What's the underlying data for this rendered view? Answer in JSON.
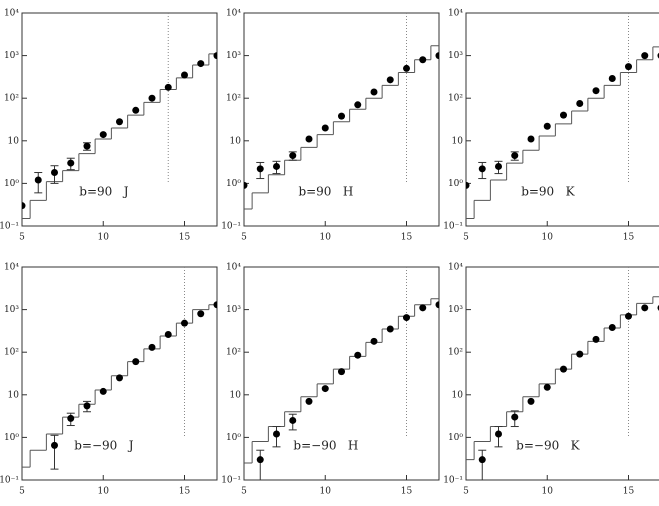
{
  "chart_data": [
    {
      "type": "scatter",
      "label": "b=90   J",
      "x": [
        5,
        6,
        7,
        8,
        9,
        10,
        11,
        12,
        13,
        14,
        15,
        16,
        17
      ],
      "values": [
        0.3,
        1.2,
        1.8,
        3,
        7.5,
        14,
        28,
        52,
        100,
        180,
        350,
        650,
        1000
      ],
      "errors": [
        null,
        0.6,
        0.8,
        0.9,
        1.5,
        null,
        null,
        null,
        null,
        null,
        null,
        null,
        null
      ],
      "bins": [
        4.5,
        5.5,
        6.5,
        7.5,
        8.5,
        9.5,
        10.5,
        11.5,
        12.5,
        13.5,
        14.5,
        15.5,
        16.5,
        17.5
      ],
      "counts": [
        0.15,
        0.4,
        1.1,
        2,
        5,
        11,
        20,
        40,
        80,
        160,
        300,
        600,
        1100
      ],
      "vline": 14,
      "log_y": true,
      "xlim": [
        5,
        17
      ],
      "ylim": [
        0.1,
        10000
      ],
      "xticks": [
        5,
        10,
        15
      ],
      "yticks": [
        {
          "value": 0.1,
          "label": "10⁻¹"
        },
        {
          "value": 1,
          "label": "10⁰"
        },
        10,
        {
          "value": 100,
          "label": "10²"
        },
        {
          "value": 1000,
          "label": "10³"
        },
        {
          "value": 10000,
          "label": "10⁴"
        }
      ]
    },
    {
      "type": "scatter",
      "label": "b=90   H",
      "x": [
        5,
        6,
        7,
        8,
        9,
        10,
        11,
        12,
        13,
        14,
        15,
        16,
        17
      ],
      "values": [
        0.9,
        2.2,
        2.5,
        4.5,
        11,
        20,
        38,
        70,
        140,
        270,
        500,
        800,
        1000
      ],
      "errors": [
        null,
        0.9,
        0.8,
        1,
        null,
        null,
        null,
        null,
        null,
        null,
        null,
        null,
        null
      ],
      "bins": [
        4.5,
        5.5,
        6.5,
        7.5,
        8.5,
        9.5,
        10.5,
        11.5,
        12.5,
        13.5,
        14.5,
        15.5,
        16.5,
        17.5
      ],
      "counts": [
        0.25,
        0.6,
        1.6,
        3.5,
        7,
        14,
        28,
        55,
        100,
        200,
        400,
        800,
        1700
      ],
      "vline": 15,
      "log_y": true,
      "xlim": [
        5,
        17
      ],
      "ylim": [
        0.1,
        10000
      ],
      "xticks": [
        5,
        10,
        15
      ],
      "yticks": [
        {
          "value": 0.1,
          "label": "10⁻¹"
        },
        {
          "value": 1,
          "label": "10⁰"
        },
        10,
        {
          "value": 100,
          "label": "10²"
        },
        {
          "value": 1000,
          "label": "10³"
        },
        {
          "value": 10000,
          "label": "10⁴"
        }
      ]
    },
    {
      "type": "scatter",
      "label": "b=90   K",
      "x": [
        5,
        6,
        7,
        8,
        9,
        10,
        11,
        12,
        13,
        14,
        15,
        16,
        17
      ],
      "values": [
        0.9,
        2.2,
        2.5,
        4.5,
        11,
        22,
        40,
        75,
        150,
        290,
        550,
        1000,
        1000
      ],
      "errors": [
        null,
        0.9,
        0.8,
        1,
        null,
        null,
        null,
        null,
        null,
        null,
        null,
        null,
        null
      ],
      "bins": [
        4.5,
        5.5,
        6.5,
        7.5,
        8.5,
        9.5,
        10.5,
        11.5,
        12.5,
        13.5,
        14.5,
        15.5,
        16.5,
        17.5
      ],
      "counts": [
        0.15,
        0.4,
        1.2,
        3,
        6,
        13,
        25,
        50,
        100,
        200,
        400,
        800,
        1600
      ],
      "vline": 15,
      "log_y": true,
      "xlim": [
        5,
        17
      ],
      "ylim": [
        0.1,
        10000
      ],
      "xticks": [
        5,
        10,
        15
      ],
      "yticks": [
        {
          "value": 0.1,
          "label": "10⁻¹"
        },
        {
          "value": 1,
          "label": "10⁰"
        },
        10,
        {
          "value": 100,
          "label": "10²"
        },
        {
          "value": 1000,
          "label": "10³"
        },
        {
          "value": 10000,
          "label": "10⁴"
        }
      ]
    },
    {
      "type": "scatter",
      "label": "b=−90   J",
      "x": [
        5,
        6,
        7,
        8,
        9,
        10,
        11,
        12,
        13,
        14,
        15,
        16,
        17
      ],
      "values": [
        null,
        null,
        0.65,
        2.8,
        5.5,
        12,
        25,
        60,
        130,
        260,
        480,
        800,
        1300
      ],
      "errors": [
        null,
        null,
        0.47,
        0.9,
        1.5,
        null,
        null,
        null,
        null,
        null,
        null,
        null,
        null
      ],
      "bins": [
        4.5,
        5.5,
        6.5,
        7.5,
        8.5,
        9.5,
        10.5,
        11.5,
        12.5,
        13.5,
        14.5,
        15.5,
        16.5,
        17.5
      ],
      "counts": [
        0.2,
        0.5,
        1.2,
        3,
        6,
        13,
        28,
        60,
        120,
        240,
        480,
        1000,
        1300
      ],
      "vline": 15,
      "log_y": true,
      "xlim": [
        5,
        17
      ],
      "ylim": [
        0.1,
        10000
      ],
      "xticks": [
        5,
        10,
        15
      ],
      "yticks": [
        {
          "value": 0.1,
          "label": "10⁻¹"
        },
        {
          "value": 1,
          "label": "10⁰"
        },
        10,
        {
          "value": 100,
          "label": "10²"
        },
        {
          "value": 1000,
          "label": "10³"
        },
        {
          "value": 10000,
          "label": "10⁴"
        }
      ]
    },
    {
      "type": "scatter",
      "label": "b=−90   H",
      "x": [
        5,
        6,
        7,
        8,
        9,
        10,
        11,
        12,
        13,
        14,
        15,
        16,
        17
      ],
      "values": [
        null,
        0.3,
        1.2,
        2.5,
        7,
        14,
        35,
        85,
        180,
        350,
        650,
        1100,
        1300
      ],
      "errors": [
        null,
        0.2,
        0.6,
        1,
        null,
        null,
        null,
        null,
        null,
        null,
        null,
        null,
        null
      ],
      "bins": [
        4.5,
        5.5,
        6.5,
        7.5,
        8.5,
        9.5,
        10.5,
        11.5,
        12.5,
        13.5,
        14.5,
        15.5,
        16.5,
        17.5
      ],
      "counts": [
        0.25,
        0.8,
        1.8,
        4,
        9,
        18,
        40,
        80,
        170,
        350,
        700,
        1300,
        1800
      ],
      "vline": 15,
      "log_y": true,
      "xlim": [
        5,
        17
      ],
      "ylim": [
        0.1,
        10000
      ],
      "xticks": [
        5,
        10,
        15
      ],
      "yticks": [
        {
          "value": 0.1,
          "label": "10⁻¹"
        },
        {
          "value": 1,
          "label": "10⁰"
        },
        10,
        {
          "value": 100,
          "label": "10²"
        },
        {
          "value": 1000,
          "label": "10³"
        },
        {
          "value": 10000,
          "label": "10⁴"
        }
      ]
    },
    {
      "type": "scatter",
      "label": "b=−90   K",
      "x": [
        5,
        6,
        7,
        8,
        9,
        10,
        11,
        12,
        13,
        14,
        15,
        16,
        17
      ],
      "values": [
        null,
        0.3,
        1.2,
        3,
        7,
        15,
        40,
        90,
        200,
        380,
        700,
        1100,
        1100
      ],
      "errors": [
        null,
        0.2,
        0.6,
        1.2,
        null,
        null,
        null,
        null,
        null,
        null,
        null,
        null,
        null
      ],
      "bins": [
        4.5,
        5.5,
        6.5,
        7.5,
        8.5,
        9.5,
        10.5,
        11.5,
        12.5,
        13.5,
        14.5,
        15.5,
        16.5,
        17.5
      ],
      "counts": [
        0.3,
        0.8,
        1.8,
        4,
        9,
        18,
        40,
        90,
        180,
        370,
        750,
        1400,
        2000
      ],
      "vline": 15,
      "log_y": true,
      "xlim": [
        5,
        17
      ],
      "ylim": [
        0.1,
        10000
      ],
      "xticks": [
        5,
        10,
        15
      ],
      "yticks": [
        {
          "value": 0.1,
          "label": "10⁻¹"
        },
        {
          "value": 1,
          "label": "10⁰"
        },
        10,
        {
          "value": 100,
          "label": "10²"
        },
        {
          "value": 1000,
          "label": "10³"
        },
        {
          "value": 10000,
          "label": "10⁴"
        }
      ]
    }
  ]
}
